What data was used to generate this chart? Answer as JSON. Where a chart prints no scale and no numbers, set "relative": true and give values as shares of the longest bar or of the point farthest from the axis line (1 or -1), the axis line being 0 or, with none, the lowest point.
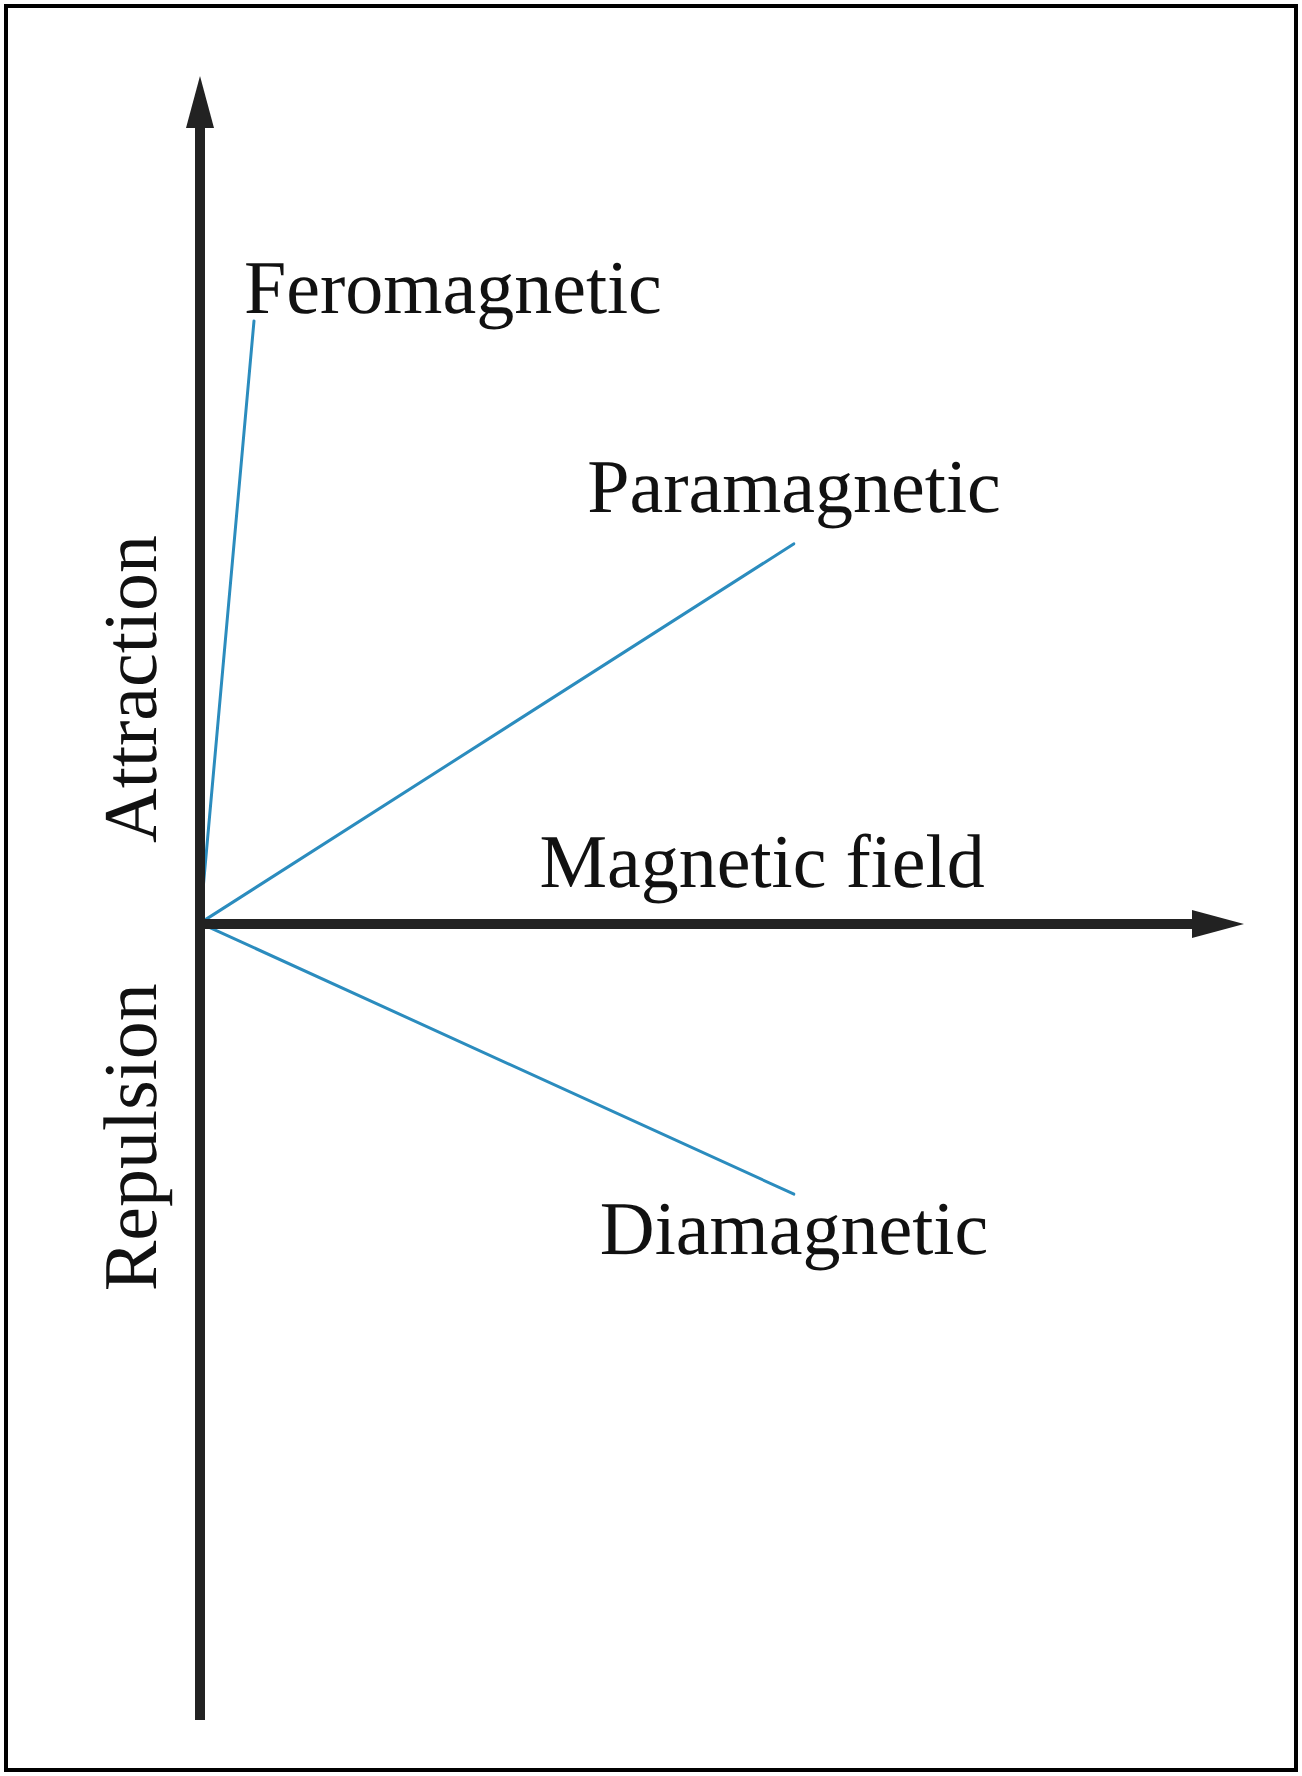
{
  "chart_data": {
    "type": "line",
    "relative": true,
    "xlabel": "Magnetic field",
    "annotations": [
      "Attraction",
      "Repulsion"
    ],
    "marker": "none",
    "line_style": "solid",
    "categories": [
      null,
      null,
      null,
      null,
      null,
      null,
      null,
      null,
      null,
      null,
      null,
      null
    ],
    "series": [
      {
        "name": "Feromagnetic",
        "color": "#2b8cbe",
        "values": [
          0,
          1,
          null,
          null,
          null,
          null,
          null,
          null,
          null,
          null,
          null,
          null
        ]
      },
      {
        "name": "Paramagnetic",
        "color": "#2b8cbe",
        "values": [
          0,
          null,
          null,
          null,
          null,
          null,
          null,
          null,
          null,
          null,
          null,
          0.63
        ]
      },
      {
        "name": "Diamagnetic",
        "color": "#2b8cbe",
        "values": [
          0,
          null,
          null,
          null,
          null,
          null,
          null,
          null,
          null,
          null,
          null,
          -0.45
        ]
      }
    ]
  }
}
